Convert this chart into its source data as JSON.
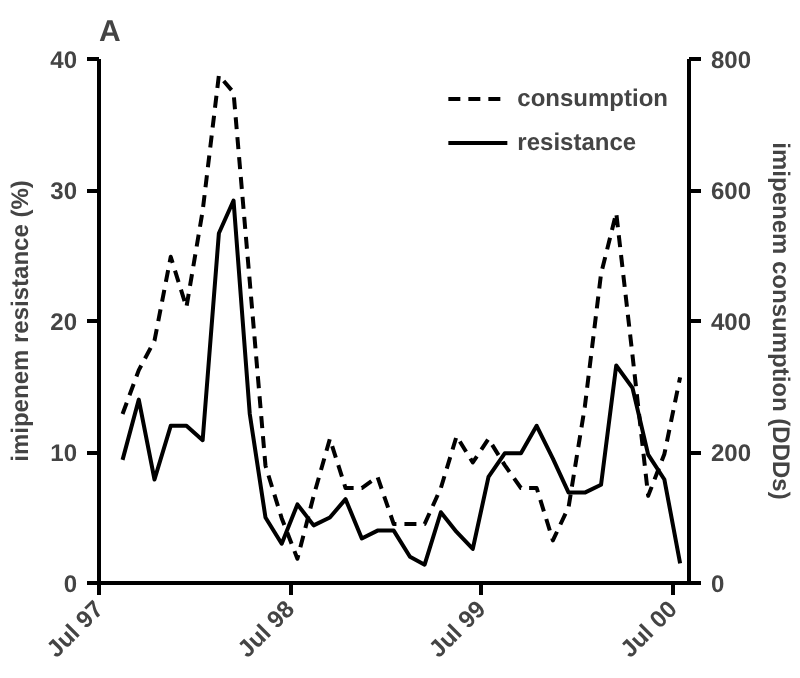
{
  "chart_data": {
    "type": "line",
    "title": "A",
    "ylabel": "imipenem resistance (%)",
    "y2label": "imipenem consumption (DDDs)",
    "x": [
      "1997-08-15",
      "1997-09-15",
      "1997-10-15",
      "1997-11-15",
      "1997-12-15",
      "1998-01-15",
      "1998-02-15",
      "1998-03-15",
      "1998-04-15",
      "1998-05-15",
      "1998-06-15",
      "1998-07-15",
      "1998-08-15",
      "1998-09-15",
      "1998-10-15",
      "1998-11-15",
      "1998-12-15",
      "1999-01-15",
      "1999-02-15",
      "1999-03-15",
      "1999-04-15",
      "1999-05-15",
      "1999-06-15",
      "1999-07-15",
      "1999-08-15",
      "1999-09-15",
      "1999-10-15",
      "1999-11-15",
      "1999-12-15",
      "2000-01-15",
      "2000-02-15",
      "2000-03-15",
      "2000-04-15",
      "2000-05-15",
      "2000-06-15",
      "2000-07-15"
    ],
    "series": [
      {
        "name": "consumption",
        "color": "#000000",
        "axis": "y2",
        "line_style": "dashed",
        "values": [
          258,
          325,
          370,
          498,
          421,
          568,
          775,
          749,
          460,
          179,
          99,
          37,
          133,
          220,
          145,
          145,
          162,
          90,
          90,
          90,
          145,
          224,
          184,
          220,
          180,
          145,
          145,
          65,
          116,
          269,
          472,
          565,
          348,
          133,
          197,
          314
        ]
      },
      {
        "name": "resistance",
        "color": "#000000",
        "line_style": "solid",
        "values": [
          9.4,
          14.0,
          7.9,
          12.0,
          12.0,
          10.9,
          26.7,
          29.2,
          12.9,
          5.0,
          3.0,
          6.0,
          4.4,
          5.0,
          6.4,
          3.4,
          4.0,
          4.0,
          2.0,
          1.4,
          5.4,
          3.9,
          2.6,
          8.1,
          9.9,
          9.9,
          12.0,
          9.5,
          6.9,
          6.9,
          7.5,
          16.6,
          14.9,
          9.8,
          7.9,
          1.5
        ]
      }
    ],
    "xlim": [
      "1997-07-01",
      "2000-08-01"
    ],
    "xticks": [
      {
        "value": "1997-07-01",
        "label": "Jul 97"
      },
      {
        "value": "1998-07-01",
        "label": "Jul 98"
      },
      {
        "value": "1999-07-01",
        "label": "Jul 99"
      },
      {
        "value": "2000-07-01",
        "label": "Jul 00"
      }
    ],
    "ylim": [
      0,
      40
    ],
    "yticks": [
      0,
      10,
      20,
      30,
      40
    ],
    "y2lim": [
      0,
      800
    ],
    "y2ticks": [
      0,
      200,
      400,
      600,
      800
    ],
    "grid": false,
    "legend": "top right",
    "marker": "none"
  }
}
